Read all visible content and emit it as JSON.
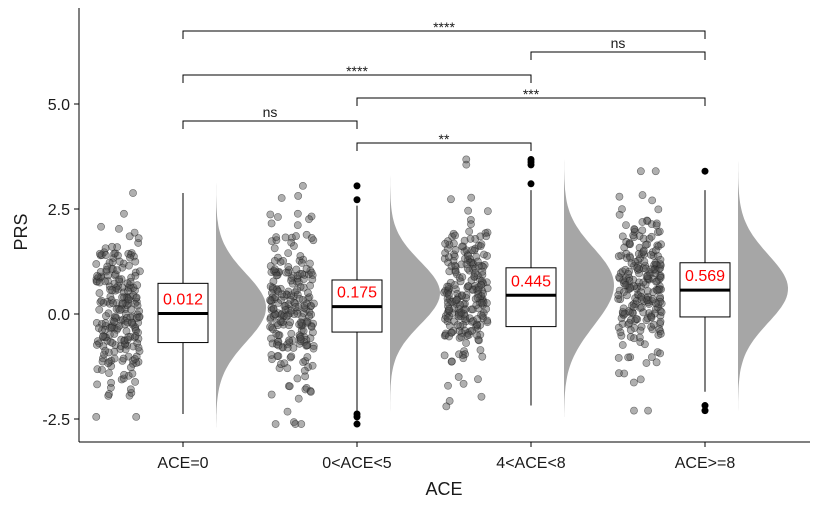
{
  "chart_data": {
    "type": "raincloud",
    "xlabel": "ACE",
    "ylabel": "PRS",
    "ylim": [
      -3.1,
      7.2
    ],
    "y_ticks": [
      {
        "value": -2.5,
        "label": "-2.5"
      },
      {
        "value": 0,
        "label": "0.0"
      },
      {
        "value": 2.5,
        "label": "2.5"
      },
      {
        "value": 5,
        "label": "5.0"
      }
    ],
    "categories": [
      "ACE=0",
      "0<ACE<5",
      "4<ACE<8",
      "ACE>=8"
    ],
    "groups": [
      {
        "name": "ACE=0",
        "median": 0.012,
        "median_label": "0.012",
        "q1": -0.68,
        "q3": 0.73,
        "whisker_low": -2.38,
        "whisker_high": 2.88,
        "outliers": [],
        "point_range": [
          -2.45,
          2.88
        ],
        "density_peaks": [
          0.35,
          -0.25
        ]
      },
      {
        "name": "0<ACE<5",
        "median": 0.175,
        "median_label": "0.175",
        "q1": -0.43,
        "q3": 0.81,
        "whisker_low": -2.3,
        "whisker_high": 2.58,
        "outliers": [
          -2.62,
          -2.45,
          -2.38,
          2.72,
          3.05
        ],
        "point_range": [
          -2.62,
          3.05
        ],
        "density_peaks": [
          0.5
        ]
      },
      {
        "name": "4<ACE<8",
        "median": 0.445,
        "median_label": "0.445",
        "q1": -0.3,
        "q3": 1.1,
        "whisker_low": -2.18,
        "whisker_high": 2.95,
        "outliers": [
          3.1,
          3.55,
          3.62,
          3.68
        ],
        "point_range": [
          -2.2,
          3.68
        ],
        "density_peaks": [
          0.95,
          0.0
        ]
      },
      {
        "name": "ACE>=8",
        "median": 0.569,
        "median_label": "0.569",
        "q1": -0.07,
        "q3": 1.22,
        "whisker_low": -1.85,
        "whisker_high": 2.95,
        "outliers": [
          -2.3,
          -2.18,
          3.4
        ],
        "point_range": [
          -2.3,
          3.4
        ],
        "density_peaks": [
          0.4,
          1.0
        ]
      }
    ],
    "comparisons": [
      {
        "group1": "ACE=0",
        "group2": "0<ACE<5",
        "label": "ns"
      },
      {
        "group1": "0<ACE<5",
        "group2": "4<ACE<8",
        "label": "**"
      },
      {
        "group1": "0<ACE<5",
        "group2": "ACE>=8",
        "label": "***"
      },
      {
        "group1": "ACE=0",
        "group2": "4<ACE<8",
        "label": "****"
      },
      {
        "group1": "4<ACE<8",
        "group2": "ACE>=8",
        "label": "ns"
      },
      {
        "group1": "ACE=0",
        "group2": "ACE>=8",
        "label": "****"
      }
    ],
    "colors": {
      "points": "#4d4d4d",
      "density": "#a6a6a6",
      "median_label": "#ff0000",
      "box": "#000000"
    }
  }
}
